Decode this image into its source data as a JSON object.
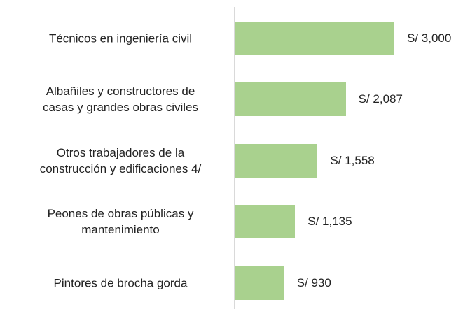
{
  "chart_data": {
    "type": "bar",
    "orientation": "horizontal",
    "categories": [
      "Técnicos en ingeniería civil",
      "Albañiles y constructores de\ncasas y grandes obras civiles",
      "Otros trabajadores de la\nconstrucción y edificaciones 4/",
      "Peones de obras públicas y\nmantenimiento",
      "Pintores de brocha gorda"
    ],
    "values": [
      3000,
      2087,
      1558,
      1135,
      930
    ],
    "value_labels": [
      "S/ 3,000",
      "S/ 2,087",
      "S/ 1,558",
      "S/ 1,135",
      "S/ 930"
    ],
    "color": "#a9d18e"
  }
}
